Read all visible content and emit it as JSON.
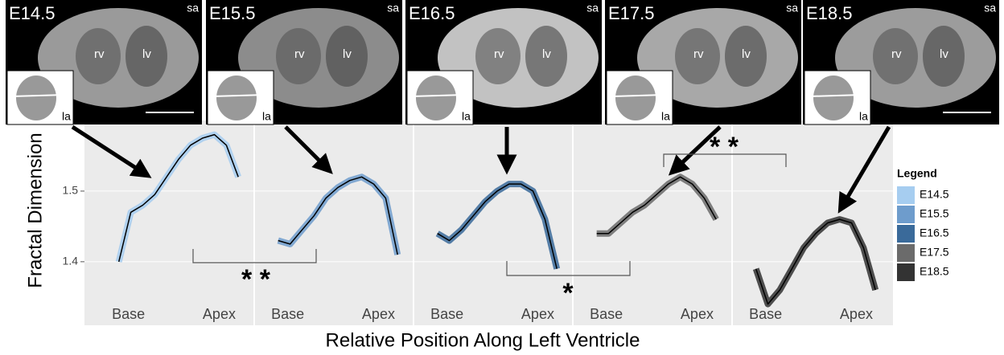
{
  "chart_data": {
    "type": "line",
    "x_label": "Relative Position Along Left Ventricle",
    "y_label": "Fractal Dimension",
    "legend_title": "Legend",
    "image_labels": {
      "rv": "rv",
      "lv": "lv",
      "sa": "sa",
      "la": "la"
    },
    "xlim": [
      0,
      1
    ],
    "xticks": [
      {
        "value": 0.21,
        "label": "Base"
      },
      {
        "value": 0.78,
        "label": "Apex"
      }
    ],
    "ylim": [
      1.31,
      1.6
    ],
    "yticks": [
      1.4,
      1.5
    ],
    "x": [
      0.15,
      0.225,
      0.3,
      0.375,
      0.45,
      0.525,
      0.6,
      0.675,
      0.75,
      0.825,
      0.9
    ],
    "series": [
      {
        "name": "E14.5",
        "color": "#a6cdf0",
        "values": [
          1.4,
          1.47,
          1.48,
          1.495,
          1.52,
          1.545,
          1.565,
          1.575,
          1.58,
          1.565,
          1.52
        ]
      },
      {
        "name": "E15.5",
        "color": "#6e9ccc",
        "values": [
          1.43,
          1.425,
          1.445,
          1.465,
          1.49,
          1.505,
          1.515,
          1.52,
          1.51,
          1.49,
          1.41
        ]
      },
      {
        "name": "E16.5",
        "color": "#3a6a9a",
        "values": [
          1.44,
          1.43,
          1.445,
          1.465,
          1.485,
          1.5,
          1.51,
          1.51,
          1.5,
          1.46,
          1.39
        ]
      },
      {
        "name": "E17.5",
        "color": "#6b6b6b",
        "values": [
          1.44,
          1.44,
          1.455,
          1.47,
          1.48,
          1.495,
          1.51,
          1.52,
          1.51,
          1.49,
          1.46
        ]
      },
      {
        "name": "E18.5",
        "color": "#333333",
        "values": [
          1.39,
          1.34,
          1.36,
          1.39,
          1.42,
          1.44,
          1.455,
          1.46,
          1.455,
          1.42,
          1.36
        ]
      }
    ],
    "annotations": [
      "* *",
      "*",
      "* *"
    ]
  }
}
